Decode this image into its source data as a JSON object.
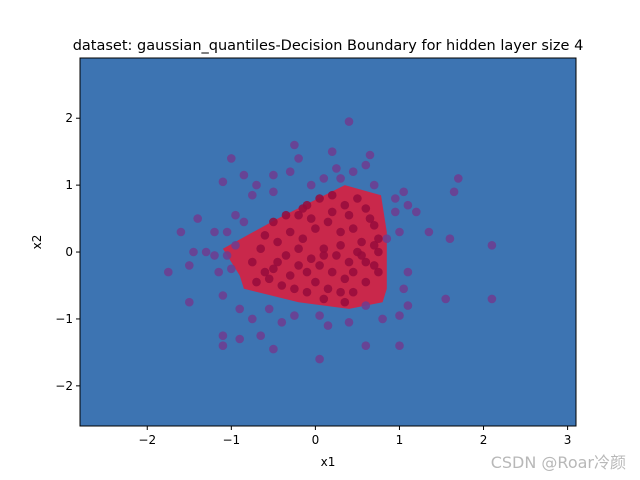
{
  "chart_data": {
    "type": "scatter",
    "title": "dataset: gaussian_quantiles-Decision Boundary for hidden layer size 4",
    "xlabel": "x1",
    "ylabel": "x2",
    "xlim": [
      -2.8,
      3.1
    ],
    "ylim": [
      -2.6,
      2.9
    ],
    "xticks": [
      -2,
      -1,
      0,
      1,
      2,
      3
    ],
    "yticks": [
      -2,
      -1,
      0,
      1,
      2
    ],
    "xtick_labels": [
      "−2",
      "−1",
      "0",
      "1",
      "2",
      "3"
    ],
    "ytick_labels": [
      "−2",
      "−1",
      "0",
      "1",
      "2"
    ],
    "grid": false,
    "background_region": {
      "class": 0,
      "color": "#3d74b2"
    },
    "decision_region": {
      "class": 1,
      "color": "#c9284b",
      "polygon": [
        [
          -1.1,
          0.05
        ],
        [
          -0.45,
          0.5
        ],
        [
          0.35,
          1.0
        ],
        [
          0.78,
          0.85
        ],
        [
          0.85,
          0.3
        ],
        [
          0.85,
          -0.55
        ],
        [
          0.8,
          -0.75
        ],
        [
          0.4,
          -0.85
        ],
        [
          -0.2,
          -0.75
        ],
        [
          -0.85,
          -0.55
        ],
        [
          -0.9,
          -0.35
        ]
      ]
    },
    "point_colors": {
      "outer": "#6e3c8f",
      "inner": "#960a3c"
    },
    "points_outer": [
      [
        -1.45,
        0.0
      ],
      [
        -1.3,
        0.0
      ],
      [
        -1.2,
        -0.05
      ],
      [
        -1.15,
        -0.3
      ],
      [
        -1.0,
        -0.25
      ],
      [
        -1.05,
        0.3
      ],
      [
        -0.95,
        0.55
      ],
      [
        -0.85,
        0.45
      ],
      [
        -1.0,
        1.4
      ],
      [
        -0.85,
        1.15
      ],
      [
        -1.1,
        1.05
      ],
      [
        -0.7,
        1.0
      ],
      [
        -0.5,
        1.15
      ],
      [
        -0.3,
        1.2
      ],
      [
        -0.2,
        1.4
      ],
      [
        -0.25,
        1.6
      ],
      [
        -0.05,
        1.0
      ],
      [
        0.1,
        1.1
      ],
      [
        0.25,
        1.25
      ],
      [
        0.3,
        1.1
      ],
      [
        0.45,
        1.2
      ],
      [
        0.6,
        1.3
      ],
      [
        0.65,
        1.45
      ],
      [
        0.7,
        1.0
      ],
      [
        0.4,
        1.95
      ],
      [
        0.95,
        0.8
      ],
      [
        1.05,
        0.9
      ],
      [
        1.1,
        0.7
      ],
      [
        0.95,
        0.6
      ],
      [
        1.2,
        0.6
      ],
      [
        1.0,
        0.3
      ],
      [
        1.35,
        0.3
      ],
      [
        1.6,
        0.2
      ],
      [
        1.65,
        0.9
      ],
      [
        1.7,
        1.1
      ],
      [
        2.1,
        0.1
      ],
      [
        2.1,
        -0.7
      ],
      [
        1.55,
        -0.7
      ],
      [
        1.1,
        -0.3
      ],
      [
        1.05,
        -0.55
      ],
      [
        1.1,
        -0.8
      ],
      [
        1.0,
        -0.95
      ],
      [
        0.8,
        -1.0
      ],
      [
        0.6,
        -0.8
      ],
      [
        0.6,
        -1.4
      ],
      [
        1.0,
        -1.4
      ],
      [
        0.4,
        -1.05
      ],
      [
        0.15,
        -1.1
      ],
      [
        0.05,
        -1.6
      ],
      [
        0.05,
        -0.95
      ],
      [
        -0.25,
        -0.95
      ],
      [
        -0.4,
        -1.05
      ],
      [
        -0.55,
        -0.85
      ],
      [
        -0.75,
        -1.0
      ],
      [
        -0.9,
        -0.85
      ],
      [
        -0.65,
        -1.25
      ],
      [
        -0.5,
        -1.45
      ],
      [
        -0.9,
        -1.3
      ],
      [
        -1.1,
        -1.4
      ],
      [
        -1.1,
        -1.25
      ],
      [
        -1.1,
        -0.65
      ],
      [
        -1.5,
        -0.75
      ],
      [
        -1.75,
        -0.3
      ],
      [
        -1.5,
        -0.2
      ],
      [
        -1.6,
        0.3
      ],
      [
        -1.4,
        0.5
      ],
      [
        -1.2,
        0.3
      ],
      [
        -0.75,
        0.85
      ],
      [
        -0.5,
        0.9
      ],
      [
        -0.95,
        0.1
      ],
      [
        -1.05,
        -0.05
      ],
      [
        0.2,
        1.5
      ],
      [
        0.85,
        0.2
      ]
    ],
    "points_inner": [
      [
        -0.5,
        0.45
      ],
      [
        -0.35,
        0.55
      ],
      [
        -0.2,
        0.55
      ],
      [
        -0.1,
        0.7
      ],
      [
        0.05,
        0.8
      ],
      [
        0.2,
        0.85
      ],
      [
        0.35,
        0.7
      ],
      [
        0.5,
        0.8
      ],
      [
        0.6,
        0.65
      ],
      [
        0.7,
        0.4
      ],
      [
        0.75,
        0.2
      ],
      [
        0.75,
        0.0
      ],
      [
        0.7,
        -0.2
      ],
      [
        0.75,
        -0.3
      ],
      [
        0.6,
        -0.45
      ],
      [
        0.45,
        -0.6
      ],
      [
        0.3,
        -0.6
      ],
      [
        0.15,
        -0.55
      ],
      [
        0.0,
        -0.45
      ],
      [
        -0.1,
        -0.6
      ],
      [
        -0.25,
        -0.55
      ],
      [
        -0.4,
        -0.5
      ],
      [
        -0.55,
        -0.4
      ],
      [
        -0.7,
        -0.45
      ],
      [
        -0.75,
        -0.15
      ],
      [
        -0.65,
        0.05
      ],
      [
        -0.6,
        0.25
      ],
      [
        -0.45,
        0.15
      ],
      [
        -0.3,
        0.3
      ],
      [
        -0.15,
        0.2
      ],
      [
        0.0,
        0.35
      ],
      [
        0.15,
        0.45
      ],
      [
        0.3,
        0.3
      ],
      [
        0.45,
        0.35
      ],
      [
        0.55,
        0.15
      ],
      [
        0.5,
        0.0
      ],
      [
        0.4,
        -0.15
      ],
      [
        0.25,
        -0.05
      ],
      [
        0.1,
        0.05
      ],
      [
        -0.05,
        -0.1
      ],
      [
        -0.2,
        -0.2
      ],
      [
        -0.35,
        -0.05
      ],
      [
        -0.5,
        -0.25
      ],
      [
        -0.3,
        -0.35
      ],
      [
        -0.1,
        -0.3
      ],
      [
        0.05,
        -0.2
      ],
      [
        0.2,
        -0.3
      ],
      [
        0.35,
        -0.4
      ],
      [
        0.6,
        -0.15
      ],
      [
        0.65,
        0.5
      ],
      [
        0.4,
        0.55
      ],
      [
        0.2,
        0.6
      ],
      [
        -0.05,
        0.5
      ],
      [
        -0.2,
        0.05
      ],
      [
        0.1,
        -0.05
      ],
      [
        0.3,
        0.1
      ],
      [
        0.45,
        -0.3
      ],
      [
        -0.45,
        -0.15
      ],
      [
        -0.6,
        -0.3
      ],
      [
        0.55,
        -0.05
      ],
      [
        0.7,
        0.1
      ],
      [
        0.35,
        -0.75
      ],
      [
        0.1,
        -0.7
      ],
      [
        -0.15,
        0.65
      ]
    ]
  },
  "watermark": "CSDN @Roar冷颜"
}
